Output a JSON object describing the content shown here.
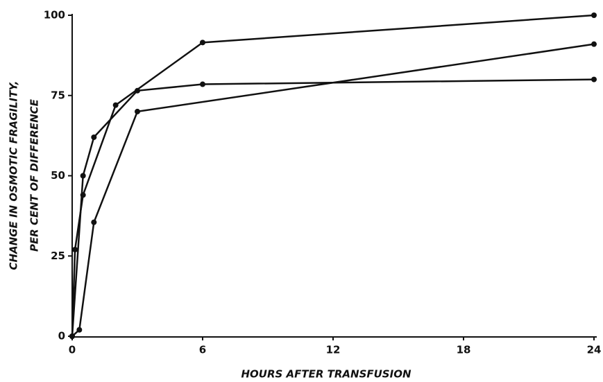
{
  "chart_data": {
    "type": "line",
    "xlabel": "HOURS AFTER TRANSFUSION",
    "ylabel": [
      "CHANGE IN OSMOTIC FRAGILITY,",
      "PER CENT OF DIFFERENCE"
    ],
    "xlim": [
      0,
      24
    ],
    "ylim": [
      0,
      100
    ],
    "xticks": [
      0,
      6,
      12,
      18,
      24
    ],
    "yticks": [
      0,
      25,
      50,
      75,
      100
    ],
    "series": [
      {
        "color": "#111111",
        "x": [
          0,
          0.5,
          1,
          3,
          6,
          24
        ],
        "values": [
          0,
          50,
          62,
          76.5,
          78.5,
          80
        ]
      },
      {
        "color": "#111111",
        "x": [
          0,
          0.13,
          0.5,
          2,
          6,
          24
        ],
        "values": [
          0,
          27,
          44,
          72,
          91.5,
          100
        ]
      },
      {
        "color": "#111111",
        "x": [
          0,
          0.33,
          1,
          3,
          24
        ],
        "values": [
          0,
          2,
          35.5,
          70,
          91
        ]
      }
    ]
  }
}
